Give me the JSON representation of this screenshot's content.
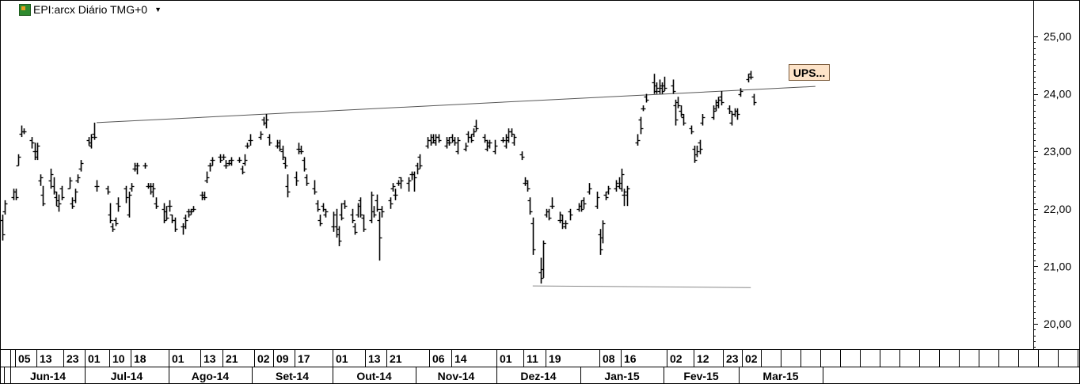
{
  "header": {
    "title": "EPI:arcx Diário TMG+0"
  },
  "annotation": {
    "label": "UPS..."
  },
  "chart_data": {
    "type": "ohlc",
    "ylim": [
      19.6,
      25.55
    ],
    "yticks": [
      "25,00",
      "24,00",
      "23,00",
      "22,00",
      "21,00",
      "20,00"
    ],
    "ytick_values": [
      25,
      24,
      23,
      22,
      21,
      20
    ],
    "day_labels": [
      "05",
      "13",
      "23",
      "01",
      "10",
      "18",
      "01",
      "13",
      "21",
      "02",
      "09",
      "17",
      "01",
      "13",
      "21",
      "06",
      "14",
      "01",
      "11",
      "19",
      "08",
      "16",
      "02",
      "12",
      "23",
      "02"
    ],
    "month_labels": [
      "Jun-14",
      "Jul-14",
      "Ago-14",
      "Set-14",
      "Out-14",
      "Nov-14",
      "Dez-14",
      "Jan-15",
      "Fev-15",
      "Mar-15"
    ],
    "x_range": [
      "2014-05-29",
      "2015-03-31"
    ],
    "bars": [
      [
        "2014-05-29",
        21.8,
        21.9,
        21.45,
        21.55
      ],
      [
        "2014-05-30",
        21.95,
        22.15,
        21.9,
        22.1
      ],
      [
        "2014-06-02",
        22.2,
        22.35,
        22.15,
        22.3
      ],
      [
        "2014-06-03",
        22.3,
        22.35,
        22.15,
        22.2
      ],
      [
        "2014-06-04",
        22.75,
        22.95,
        22.75,
        22.9
      ],
      [
        "2014-06-05",
        23.3,
        23.45,
        23.25,
        23.35
      ],
      [
        "2014-06-06",
        23.35,
        23.4,
        23.3,
        23.35
      ],
      [
        "2014-06-09",
        23.2,
        23.25,
        23.05,
        23.15
      ],
      [
        "2014-06-10",
        23.0,
        23.15,
        22.85,
        22.9
      ],
      [
        "2014-06-11",
        23.0,
        23.15,
        22.85,
        23.1
      ],
      [
        "2014-06-12",
        22.5,
        22.6,
        22.4,
        22.55
      ],
      [
        "2014-06-13",
        22.25,
        22.4,
        22.05,
        22.1
      ],
      [
        "2014-06-16",
        22.5,
        22.7,
        22.35,
        22.6
      ],
      [
        "2014-06-17",
        22.4,
        22.55,
        22.25,
        22.3
      ],
      [
        "2014-06-18",
        22.2,
        22.3,
        22.05,
        22.15
      ],
      [
        "2014-06-19",
        22.05,
        22.25,
        21.95,
        22.1
      ],
      [
        "2014-06-20",
        22.35,
        22.4,
        22.15,
        22.2
      ],
      [
        "2014-06-23",
        22.35,
        22.55,
        22.35,
        22.5
      ],
      [
        "2014-06-24",
        22.1,
        22.2,
        22.0,
        22.05
      ],
      [
        "2014-06-25",
        22.15,
        22.35,
        22.1,
        22.3
      ],
      [
        "2014-06-26",
        22.5,
        22.6,
        22.45,
        22.55
      ],
      [
        "2014-06-27",
        22.7,
        22.85,
        22.65,
        22.8
      ],
      [
        "2014-06-30",
        23.2,
        23.25,
        23.1,
        23.15
      ],
      [
        "2014-07-01",
        23.1,
        23.3,
        23.05,
        23.25
      ],
      [
        "2014-07-02",
        23.3,
        23.5,
        23.2,
        23.25
      ],
      [
        "2014-07-03",
        22.4,
        22.5,
        22.3,
        22.4
      ],
      [
        "2014-07-07",
        22.35,
        22.4,
        22.25,
        22.3
      ],
      [
        "2014-07-08",
        21.9,
        22.1,
        21.75,
        21.8
      ],
      [
        "2014-07-09",
        21.7,
        21.75,
        21.6,
        21.65
      ],
      [
        "2014-07-10",
        21.8,
        21.85,
        21.7,
        21.75
      ],
      [
        "2014-07-11",
        22.1,
        22.2,
        21.95,
        22.05
      ],
      [
        "2014-07-14",
        22.35,
        22.4,
        22.1,
        22.2
      ],
      [
        "2014-07-15",
        21.9,
        22.3,
        21.85,
        22.25
      ],
      [
        "2014-07-16",
        22.35,
        22.45,
        22.3,
        22.4
      ],
      [
        "2014-07-17",
        22.7,
        22.8,
        22.65,
        22.7
      ],
      [
        "2014-07-18",
        22.75,
        22.8,
        22.6,
        22.75
      ],
      [
        "2014-07-21",
        22.75,
        22.8,
        22.7,
        22.75
      ],
      [
        "2014-07-22",
        22.4,
        22.45,
        22.35,
        22.4
      ],
      [
        "2014-07-23",
        22.4,
        22.45,
        22.25,
        22.3
      ],
      [
        "2014-07-24",
        22.4,
        22.45,
        22.2,
        22.35
      ],
      [
        "2014-07-25",
        22.1,
        22.2,
        22.0,
        22.05
      ],
      [
        "2014-07-28",
        22.0,
        22.1,
        21.75,
        21.8
      ],
      [
        "2014-07-29",
        21.95,
        22.05,
        21.8,
        21.85
      ],
      [
        "2014-07-30",
        22.05,
        22.15,
        21.95,
        22.05
      ],
      [
        "2014-07-31",
        21.9,
        21.9,
        21.75,
        21.8
      ],
      [
        "2014-08-01",
        21.8,
        21.85,
        21.6,
        21.65
      ],
      [
        "2014-08-04",
        21.7,
        21.75,
        21.55,
        21.7
      ],
      [
        "2014-08-05",
        21.85,
        21.9,
        21.65,
        21.8
      ],
      [
        "2014-08-06",
        21.95,
        22.0,
        21.85,
        21.9
      ],
      [
        "2014-08-07",
        21.95,
        22.0,
        21.9,
        21.95
      ],
      [
        "2014-08-08",
        22.0,
        22.05,
        21.95,
        22.0
      ],
      [
        "2014-08-11",
        22.25,
        22.3,
        22.15,
        22.25
      ],
      [
        "2014-08-12",
        22.2,
        22.3,
        22.15,
        22.2
      ],
      [
        "2014-08-13",
        22.5,
        22.65,
        22.45,
        22.55
      ],
      [
        "2014-08-14",
        22.75,
        22.8,
        22.65,
        22.75
      ],
      [
        "2014-08-15",
        22.85,
        22.9,
        22.75,
        22.85
      ],
      [
        "2014-08-18",
        22.9,
        22.95,
        22.8,
        22.85
      ],
      [
        "2014-08-19",
        22.9,
        22.95,
        22.85,
        22.9
      ],
      [
        "2014-08-20",
        22.75,
        22.85,
        22.7,
        22.75
      ],
      [
        "2014-08-21",
        22.8,
        22.85,
        22.75,
        22.8
      ],
      [
        "2014-08-22",
        22.85,
        22.9,
        22.75,
        22.85
      ],
      [
        "2014-08-25",
        22.85,
        22.9,
        22.8,
        22.85
      ],
      [
        "2014-08-26",
        22.7,
        22.75,
        22.6,
        22.65
      ],
      [
        "2014-08-27",
        22.8,
        22.95,
        22.75,
        22.85
      ],
      [
        "2014-08-28",
        23.1,
        23.15,
        23.05,
        23.1
      ],
      [
        "2014-08-29",
        23.2,
        23.3,
        23.1,
        23.2
      ],
      [
        "2014-09-02",
        23.25,
        23.35,
        23.2,
        23.3
      ],
      [
        "2014-09-03",
        23.55,
        23.6,
        23.45,
        23.5
      ],
      [
        "2014-09-04",
        23.5,
        23.65,
        23.4,
        23.55
      ],
      [
        "2014-09-05",
        23.25,
        23.3,
        23.1,
        23.15
      ],
      [
        "2014-09-08",
        23.1,
        23.2,
        23.05,
        23.1
      ],
      [
        "2014-09-09",
        23.15,
        23.2,
        23.0,
        23.05
      ],
      [
        "2014-09-10",
        23.0,
        23.1,
        22.85,
        22.9
      ],
      [
        "2014-09-11",
        22.8,
        22.9,
        22.7,
        22.75
      ],
      [
        "2014-09-12",
        22.4,
        22.6,
        22.2,
        22.3
      ],
      [
        "2014-09-15",
        22.55,
        22.65,
        22.4,
        22.5
      ],
      [
        "2014-09-16",
        23.05,
        23.15,
        22.95,
        23.0
      ],
      [
        "2014-09-17",
        23.05,
        23.1,
        22.95,
        23.0
      ],
      [
        "2014-09-18",
        22.85,
        22.9,
        22.65,
        22.7
      ],
      [
        "2014-09-19",
        22.55,
        22.6,
        22.4,
        22.45
      ],
      [
        "2014-09-22",
        22.35,
        22.5,
        22.25,
        22.3
      ],
      [
        "2014-09-23",
        22.1,
        22.15,
        21.95,
        22.0
      ],
      [
        "2014-09-24",
        21.8,
        21.9,
        21.7,
        21.75
      ],
      [
        "2014-09-25",
        22.05,
        22.1,
        21.95,
        22.0
      ],
      [
        "2014-09-26",
        21.9,
        22.0,
        21.85,
        21.95
      ],
      [
        "2014-09-29",
        21.7,
        21.95,
        21.6,
        21.9
      ],
      [
        "2014-09-30",
        21.7,
        22.0,
        21.5,
        21.55
      ],
      [
        "2014-10-01",
        21.65,
        21.7,
        21.35,
        21.45
      ],
      [
        "2014-10-02",
        21.9,
        22.1,
        21.8,
        21.85
      ],
      [
        "2014-10-03",
        22.1,
        22.15,
        22.0,
        22.05
      ],
      [
        "2014-10-06",
        21.9,
        22.0,
        21.75,
        21.8
      ],
      [
        "2014-10-07",
        21.7,
        21.75,
        21.55,
        21.6
      ],
      [
        "2014-10-08",
        21.9,
        22.1,
        21.85,
        22.05
      ],
      [
        "2014-10-09",
        22.15,
        22.2,
        21.85,
        21.9
      ],
      [
        "2014-10-10",
        21.85,
        21.9,
        21.6,
        21.65
      ],
      [
        "2014-10-13",
        21.8,
        22.3,
        21.75,
        22.25
      ],
      [
        "2014-10-14",
        21.95,
        22.05,
        21.85,
        21.9
      ],
      [
        "2014-10-15",
        22.15,
        22.25,
        21.95,
        22.0
      ],
      [
        "2014-10-16",
        21.8,
        21.95,
        21.1,
        21.5
      ],
      [
        "2014-10-17",
        22.0,
        22.05,
        21.85,
        21.95
      ],
      [
        "2014-10-20",
        22.15,
        22.2,
        22.0,
        22.1
      ],
      [
        "2014-10-21",
        22.35,
        22.45,
        22.3,
        22.4
      ],
      [
        "2014-10-22",
        22.25,
        22.35,
        22.15,
        22.25
      ],
      [
        "2014-10-23",
        22.45,
        22.5,
        22.4,
        22.45
      ],
      [
        "2014-10-24",
        22.55,
        22.55,
        22.35,
        22.5
      ],
      [
        "2014-10-27",
        22.45,
        22.55,
        22.3,
        22.5
      ],
      [
        "2014-10-28",
        22.6,
        22.65,
        22.5,
        22.6
      ],
      [
        "2014-10-29",
        22.6,
        22.65,
        22.3,
        22.55
      ],
      [
        "2014-10-30",
        22.75,
        22.8,
        22.6,
        22.7
      ],
      [
        "2014-10-31",
        22.9,
        22.95,
        22.7,
        22.75
      ],
      [
        "2014-11-03",
        23.1,
        23.25,
        23.05,
        23.2
      ],
      [
        "2014-11-04",
        23.2,
        23.3,
        23.1,
        23.15
      ],
      [
        "2014-11-05",
        23.25,
        23.3,
        23.15,
        23.2
      ],
      [
        "2014-11-06",
        23.15,
        23.3,
        23.1,
        23.25
      ],
      [
        "2014-11-07",
        23.25,
        23.3,
        23.15,
        23.2
      ],
      [
        "2014-11-10",
        23.1,
        23.25,
        23.05,
        23.15
      ],
      [
        "2014-11-11",
        23.2,
        23.25,
        23.1,
        23.15
      ],
      [
        "2014-11-12",
        23.25,
        23.3,
        23.15,
        23.2
      ],
      [
        "2014-11-13",
        23.2,
        23.25,
        23.1,
        23.15
      ],
      [
        "2014-11-14",
        23.0,
        23.25,
        22.95,
        23.2
      ],
      [
        "2014-11-17",
        23.05,
        23.15,
        23.0,
        23.1
      ],
      [
        "2014-11-18",
        23.3,
        23.35,
        23.15,
        23.25
      ],
      [
        "2014-11-19",
        23.25,
        23.3,
        23.15,
        23.2
      ],
      [
        "2014-11-20",
        23.3,
        23.4,
        23.25,
        23.35
      ],
      [
        "2014-11-21",
        23.45,
        23.55,
        23.35,
        23.4
      ],
      [
        "2014-11-24",
        23.25,
        23.3,
        23.15,
        23.2
      ],
      [
        "2014-11-25",
        23.05,
        23.2,
        23.0,
        23.15
      ],
      [
        "2014-11-26",
        23.1,
        23.2,
        23.05,
        23.15
      ],
      [
        "2014-11-28",
        23.0,
        23.2,
        22.95,
        23.1
      ],
      [
        "2014-12-01",
        23.2,
        23.25,
        23.15,
        23.2
      ],
      [
        "2014-12-02",
        23.1,
        23.3,
        23.05,
        23.2
      ],
      [
        "2014-12-03",
        23.25,
        23.4,
        23.15,
        23.35
      ],
      [
        "2014-12-04",
        23.35,
        23.4,
        23.25,
        23.3
      ],
      [
        "2014-12-05",
        23.15,
        23.3,
        23.1,
        23.25
      ],
      [
        "2014-12-08",
        22.95,
        23.0,
        22.85,
        22.9
      ],
      [
        "2014-12-09",
        22.45,
        22.55,
        22.4,
        22.5
      ],
      [
        "2014-12-10",
        22.45,
        22.5,
        22.3,
        22.35
      ],
      [
        "2014-12-11",
        22.15,
        22.2,
        21.9,
        21.95
      ],
      [
        "2014-12-12",
        21.75,
        21.85,
        21.2,
        21.3
      ],
      [
        "2014-12-15",
        20.9,
        21.15,
        20.7,
        20.8
      ],
      [
        "2014-12-16",
        20.95,
        21.45,
        20.8,
        21.4
      ],
      [
        "2014-12-17",
        21.9,
        22.0,
        21.85,
        21.95
      ],
      [
        "2014-12-18",
        21.95,
        22.0,
        21.8,
        21.85
      ],
      [
        "2014-12-19",
        22.05,
        22.2,
        22.0,
        22.05
      ],
      [
        "2014-12-22",
        21.8,
        21.95,
        21.75,
        21.9
      ],
      [
        "2014-12-23",
        21.8,
        21.9,
        21.65,
        21.75
      ],
      [
        "2014-12-24",
        21.7,
        21.8,
        21.65,
        21.75
      ],
      [
        "2014-12-26",
        21.95,
        22.0,
        21.8,
        21.9
      ],
      [
        "2014-12-29",
        22.0,
        22.1,
        21.95,
        22.05
      ],
      [
        "2014-12-30",
        22.05,
        22.15,
        21.95,
        22.0
      ],
      [
        "2014-12-31",
        22.15,
        22.2,
        22.0,
        22.1
      ],
      [
        "2015-01-02",
        22.3,
        22.45,
        22.25,
        22.35
      ],
      [
        "2015-01-05",
        22.05,
        22.3,
        22.0,
        22.2
      ],
      [
        "2015-01-06",
        21.55,
        21.65,
        21.2,
        21.3
      ],
      [
        "2015-01-07",
        21.5,
        21.8,
        21.4,
        21.75
      ],
      [
        "2015-01-08",
        22.25,
        22.3,
        22.15,
        22.2
      ],
      [
        "2015-01-09",
        22.3,
        22.4,
        22.25,
        22.35
      ],
      [
        "2015-01-12",
        22.35,
        22.5,
        22.3,
        22.45
      ],
      [
        "2015-01-13",
        22.4,
        22.55,
        22.35,
        22.45
      ],
      [
        "2015-01-14",
        22.35,
        22.7,
        22.3,
        22.6
      ],
      [
        "2015-01-15",
        22.25,
        22.35,
        22.05,
        22.3
      ],
      [
        "2015-01-16",
        22.25,
        22.4,
        22.05,
        22.35
      ],
      [
        "2015-01-20",
        23.15,
        23.3,
        23.1,
        23.2
      ],
      [
        "2015-01-21",
        23.55,
        23.6,
        23.3,
        23.4
      ],
      [
        "2015-01-22",
        23.75,
        23.8,
        23.7,
        23.75
      ],
      [
        "2015-01-23",
        23.95,
        24.0,
        23.85,
        23.9
      ],
      [
        "2015-01-26",
        24.2,
        24.35,
        24.0,
        24.05
      ],
      [
        "2015-01-27",
        24.15,
        24.2,
        24.0,
        24.1
      ],
      [
        "2015-01-28",
        24.05,
        24.25,
        24.0,
        24.15
      ],
      [
        "2015-01-29",
        24.1,
        24.2,
        24.0,
        24.05
      ],
      [
        "2015-01-30",
        24.15,
        24.3,
        24.05,
        24.1
      ],
      [
        "2015-02-02",
        24.15,
        24.25,
        24.0,
        24.05
      ],
      [
        "2015-02-03",
        23.8,
        23.9,
        23.45,
        23.55
      ],
      [
        "2015-02-04",
        23.85,
        23.95,
        23.75,
        23.8
      ],
      [
        "2015-02-05",
        23.7,
        23.8,
        23.6,
        23.65
      ],
      [
        "2015-02-06",
        23.6,
        23.65,
        23.45,
        23.5
      ],
      [
        "2015-02-09",
        23.4,
        23.45,
        23.3,
        23.35
      ],
      [
        "2015-02-10",
        23.05,
        23.1,
        22.8,
        22.85
      ],
      [
        "2015-02-11",
        22.95,
        23.1,
        22.9,
        23.0
      ],
      [
        "2015-02-12",
        23.15,
        23.2,
        22.95,
        23.05
      ],
      [
        "2015-02-13",
        23.5,
        23.65,
        23.45,
        23.6
      ],
      [
        "2015-02-17",
        23.6,
        23.8,
        23.55,
        23.7
      ],
      [
        "2015-02-18",
        23.75,
        23.9,
        23.7,
        23.8
      ],
      [
        "2015-02-19",
        23.85,
        23.95,
        23.75,
        23.9
      ],
      [
        "2015-02-20",
        23.95,
        24.05,
        23.8,
        23.85
      ],
      [
        "2015-02-23",
        23.75,
        23.8,
        23.65,
        23.7
      ],
      [
        "2015-02-24",
        23.5,
        23.7,
        23.45,
        23.65
      ],
      [
        "2015-02-25",
        23.65,
        23.75,
        23.6,
        23.7
      ],
      [
        "2015-02-26",
        23.7,
        23.75,
        23.55,
        23.65
      ],
      [
        "2015-02-27",
        24.0,
        24.1,
        23.95,
        24.05
      ],
      [
        "2015-03-02",
        24.25,
        24.35,
        24.2,
        24.3
      ],
      [
        "2015-03-03",
        24.35,
        24.4,
        24.25,
        24.3
      ],
      [
        "2015-03-04",
        23.95,
        24.0,
        23.8,
        23.85
      ]
    ],
    "trendlines": [
      {
        "x1": "2014-07-03",
        "y1": 23.5,
        "x2": "2015-03-27",
        "y2": 24.13,
        "color": "#555555"
      },
      {
        "x1": "2014-12-12",
        "y1": 20.66,
        "x2": "2015-03-03",
        "y2": 20.63,
        "color": "#888888"
      }
    ]
  }
}
